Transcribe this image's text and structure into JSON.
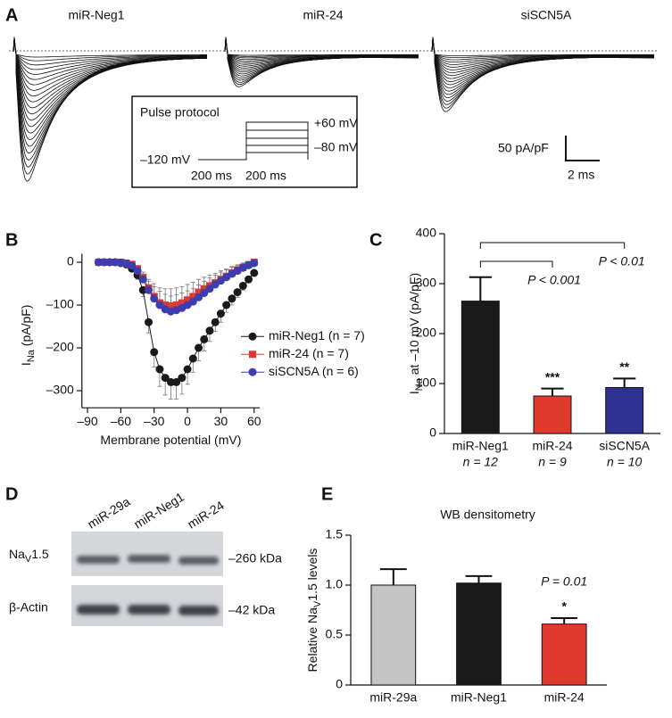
{
  "panel_letters": [
    "A",
    "B",
    "C",
    "D",
    "E"
  ],
  "panel_a": {
    "labels": [
      "miR-Neg1",
      "miR-24",
      "siSCN5A"
    ],
    "protocol": {
      "title": "Pulse protocol",
      "levels": [
        "+60 mV",
        "–80 mV",
        "–120 mV"
      ],
      "durations": [
        "200 ms",
        "200 ms"
      ]
    },
    "scale": [
      "50 pA/pF",
      "2 ms"
    ]
  },
  "blot": {
    "lanes": [
      "miR-29a",
      "miR-Neg1",
      "miR-24"
    ],
    "rows": [
      {
        "label": {
          "text": "Na",
          "sub": "V",
          "rest": "1.5"
        },
        "size": "–260 kDa"
      },
      {
        "label": {
          "text": "β-Actin"
        },
        "size": "–42 kDa"
      }
    ]
  },
  "chart_data": [
    {
      "type": "line",
      "x_label": "Membrane potential (mV)",
      "y_label": {
        "text": "I",
        "sub": "Na",
        "rest": " (pA/pF)"
      },
      "x": [
        -80,
        -75,
        -70,
        -65,
        -60,
        -55,
        -50,
        -45,
        -40,
        -35,
        -30,
        -25,
        -20,
        -15,
        -10,
        -5,
        0,
        5,
        10,
        15,
        20,
        25,
        30,
        35,
        40,
        45,
        50,
        55,
        60
      ],
      "series": [
        {
          "name": "miR-Neg1 (n = 7)",
          "color": "#1a1a1a",
          "marker": "circle",
          "error_side": "down",
          "values": [
            0,
            0,
            0,
            0,
            -2,
            -5,
            -15,
            -30,
            -65,
            -140,
            -210,
            -250,
            -270,
            -280,
            -280,
            -270,
            -250,
            -225,
            -200,
            -180,
            -160,
            -140,
            -120,
            -100,
            -85,
            -70,
            -55,
            -40,
            -25
          ],
          "errors": [
            0,
            0,
            0,
            0,
            1,
            2,
            5,
            10,
            15,
            25,
            35,
            40,
            40,
            40,
            40,
            38,
            35,
            32,
            30,
            27,
            25,
            22,
            20,
            17,
            15,
            12,
            10,
            8,
            5
          ]
        },
        {
          "name": "miR-24 (n = 7)",
          "color": "#e8322b",
          "marker": "square",
          "error_side": "up",
          "values": [
            0,
            0,
            0,
            0,
            0,
            -2,
            -5,
            -15,
            -35,
            -60,
            -80,
            -95,
            -100,
            -102,
            -100,
            -95,
            -88,
            -80,
            -70,
            -62,
            -55,
            -48,
            -40,
            -33,
            -25,
            -18,
            -12,
            -6,
            0
          ],
          "errors": [
            0,
            0,
            0,
            0,
            0,
            1,
            3,
            6,
            12,
            20,
            30,
            35,
            38,
            40,
            40,
            38,
            36,
            33,
            30,
            27,
            25,
            22,
            20,
            17,
            15,
            12,
            10,
            8,
            5
          ]
        },
        {
          "name": "siSCN5A (n = 6)",
          "color": "#3d3dae",
          "marker": "circle",
          "error_side": "up",
          "values": [
            0,
            0,
            0,
            0,
            -1,
            -3,
            -8,
            -20,
            -40,
            -65,
            -85,
            -100,
            -110,
            -115,
            -112,
            -107,
            -100,
            -92,
            -82,
            -72,
            -62,
            -52,
            -43,
            -35,
            -27,
            -20,
            -13,
            -7,
            -2
          ],
          "errors": [
            0,
            0,
            0,
            0,
            0,
            1,
            3,
            6,
            12,
            20,
            28,
            32,
            35,
            36,
            36,
            35,
            33,
            31,
            29,
            27,
            25,
            22,
            20,
            17,
            15,
            12,
            10,
            8,
            5
          ]
        }
      ],
      "xlim": [
        -95,
        65
      ],
      "xticks": [
        {
          "value": -90,
          "label": "–90"
        },
        {
          "value": -60,
          "label": "–60"
        },
        {
          "value": -30,
          "label": "–30"
        },
        0,
        30,
        60
      ],
      "ylim": [
        -340,
        20
      ],
      "yticks": [
        0,
        {
          "value": -100,
          "label": "–100"
        },
        {
          "value": -200,
          "label": "–200"
        },
        {
          "value": -300,
          "label": "–300"
        }
      ],
      "legend": "lower right"
    },
    {
      "type": "bar",
      "y_label": {
        "text": "I",
        "sub": "Na",
        "rest": " at –10 mV (pA/pF)"
      },
      "categories": [
        "miR-Neg1",
        "miR-24",
        "siSCN5A"
      ],
      "n_labels": [
        "n = 12",
        "n = 9",
        "n = 10"
      ],
      "values": [
        265,
        75,
        92
      ],
      "errors": [
        48,
        15,
        18
      ],
      "colors": [
        "#1a1a1a",
        "#e03a2e",
        "#2e3192"
      ],
      "significance": [
        null,
        "***",
        "**"
      ],
      "annotations": [
        "P < 0.001",
        "P < 0.01"
      ],
      "ylim": [
        0,
        400
      ],
      "yticks": [
        0,
        100,
        200,
        300,
        400
      ]
    },
    {
      "type": "bar",
      "title": "WB densitometry",
      "y_label": {
        "text": "Relative Na",
        "sub": "V",
        "rest": "1.5 levels"
      },
      "categories": [
        "miR-29a",
        "miR-Neg1",
        "miR-24"
      ],
      "values": [
        1.0,
        1.02,
        0.61
      ],
      "errors": [
        0.16,
        0.07,
        0.06
      ],
      "colors": [
        "#c4c4c4",
        "#1a1a1a",
        "#e03a2e"
      ],
      "significance": [
        null,
        null,
        "*"
      ],
      "annotations": [
        "P = 0.01"
      ],
      "ylim": [
        0,
        1.5
      ],
      "yticks": [
        0,
        0.5,
        {
          "value": 1.0,
          "label": "1.0"
        },
        1.5
      ]
    }
  ]
}
